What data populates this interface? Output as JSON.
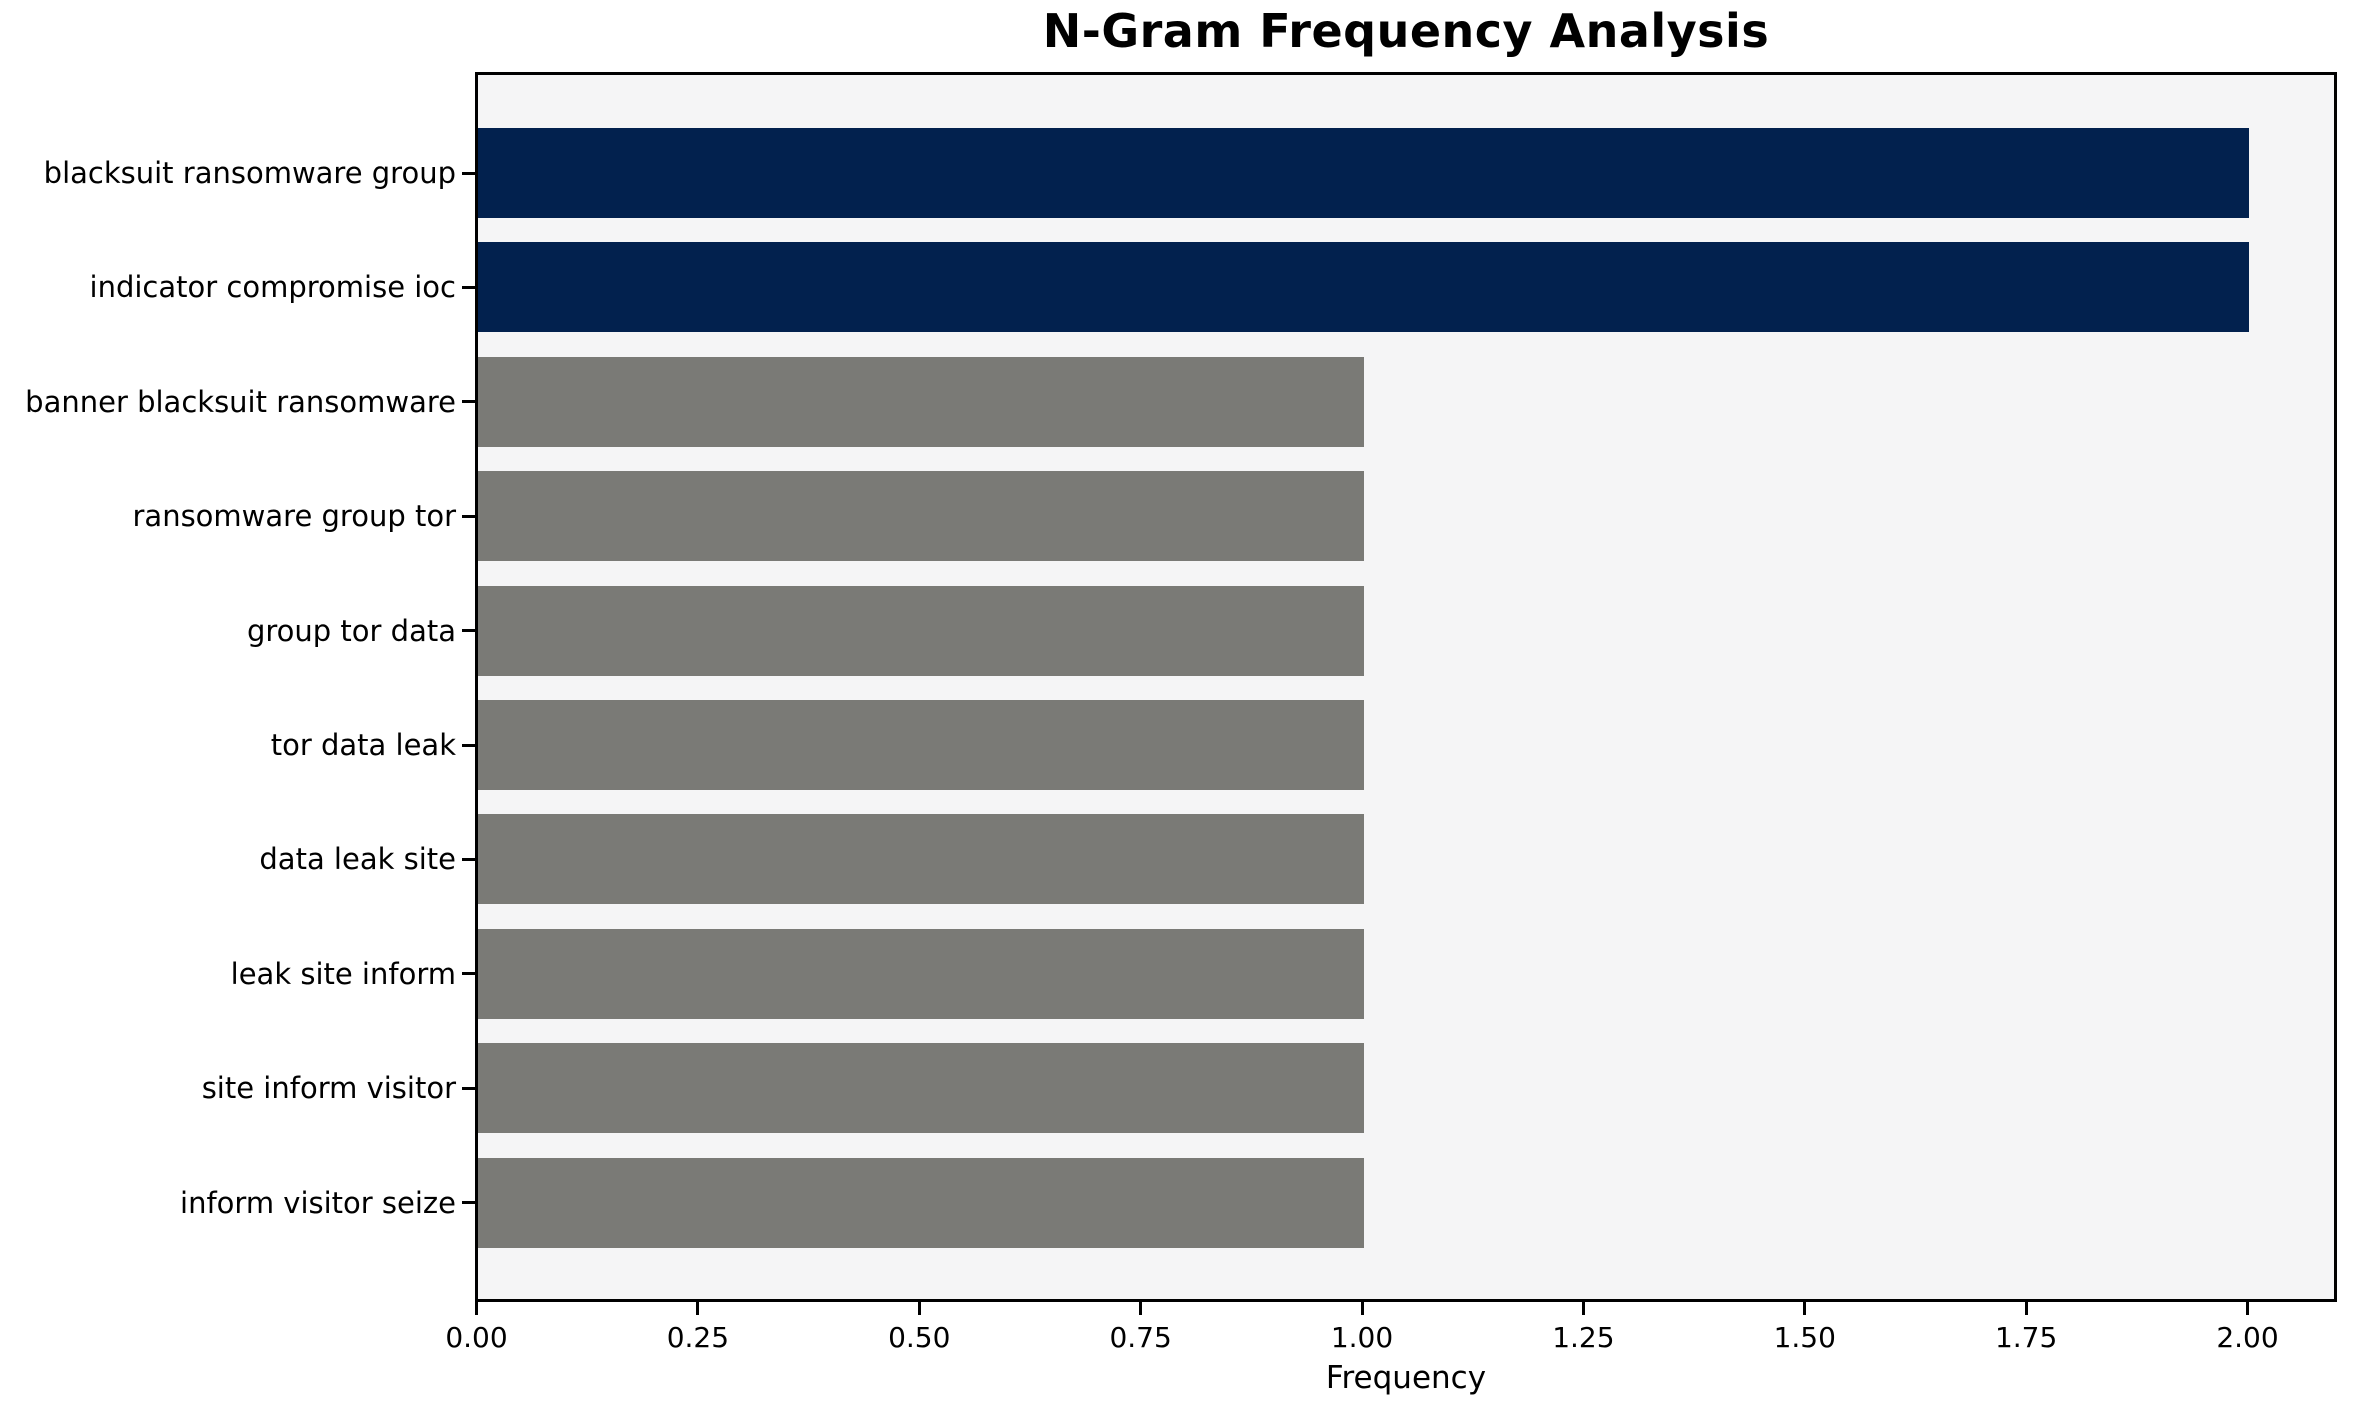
{
  "chart_data": {
    "type": "bar",
    "orientation": "horizontal",
    "title": "N-Gram Frequency Analysis",
    "xlabel": "Frequency",
    "ylabel": "",
    "categories": [
      "blacksuit ransomware group",
      "indicator compromise ioc",
      "banner blacksuit ransomware",
      "ransomware group tor",
      "group tor data",
      "tor data leak",
      "data leak site",
      "leak site inform",
      "site inform visitor",
      "inform visitor seize"
    ],
    "values": [
      2,
      2,
      1,
      1,
      1,
      1,
      1,
      1,
      1,
      1
    ],
    "bar_colors": [
      "#02214e",
      "#02214e",
      "#7a7a76",
      "#7a7a76",
      "#7a7a76",
      "#7a7a76",
      "#7a7a76",
      "#7a7a76",
      "#7a7a76",
      "#7a7a76"
    ],
    "xlim": [
      0,
      2.1
    ],
    "xticks": {
      "values": [
        0,
        0.25,
        0.5,
        0.75,
        1.0,
        1.25,
        1.5,
        1.75,
        2.0
      ],
      "labels": [
        "0.00",
        "0.25",
        "0.50",
        "0.75",
        "1.00",
        "1.25",
        "1.50",
        "1.75",
        "2.00"
      ]
    },
    "grid": false,
    "legend": "none",
    "colors": {
      "highlight_bar": "#02214e",
      "normal_bar": "#7a7a76",
      "plot_background": "#f5f5f6",
      "figure_background": "#ffffff",
      "spine": "#000000",
      "text": "#000000"
    }
  }
}
